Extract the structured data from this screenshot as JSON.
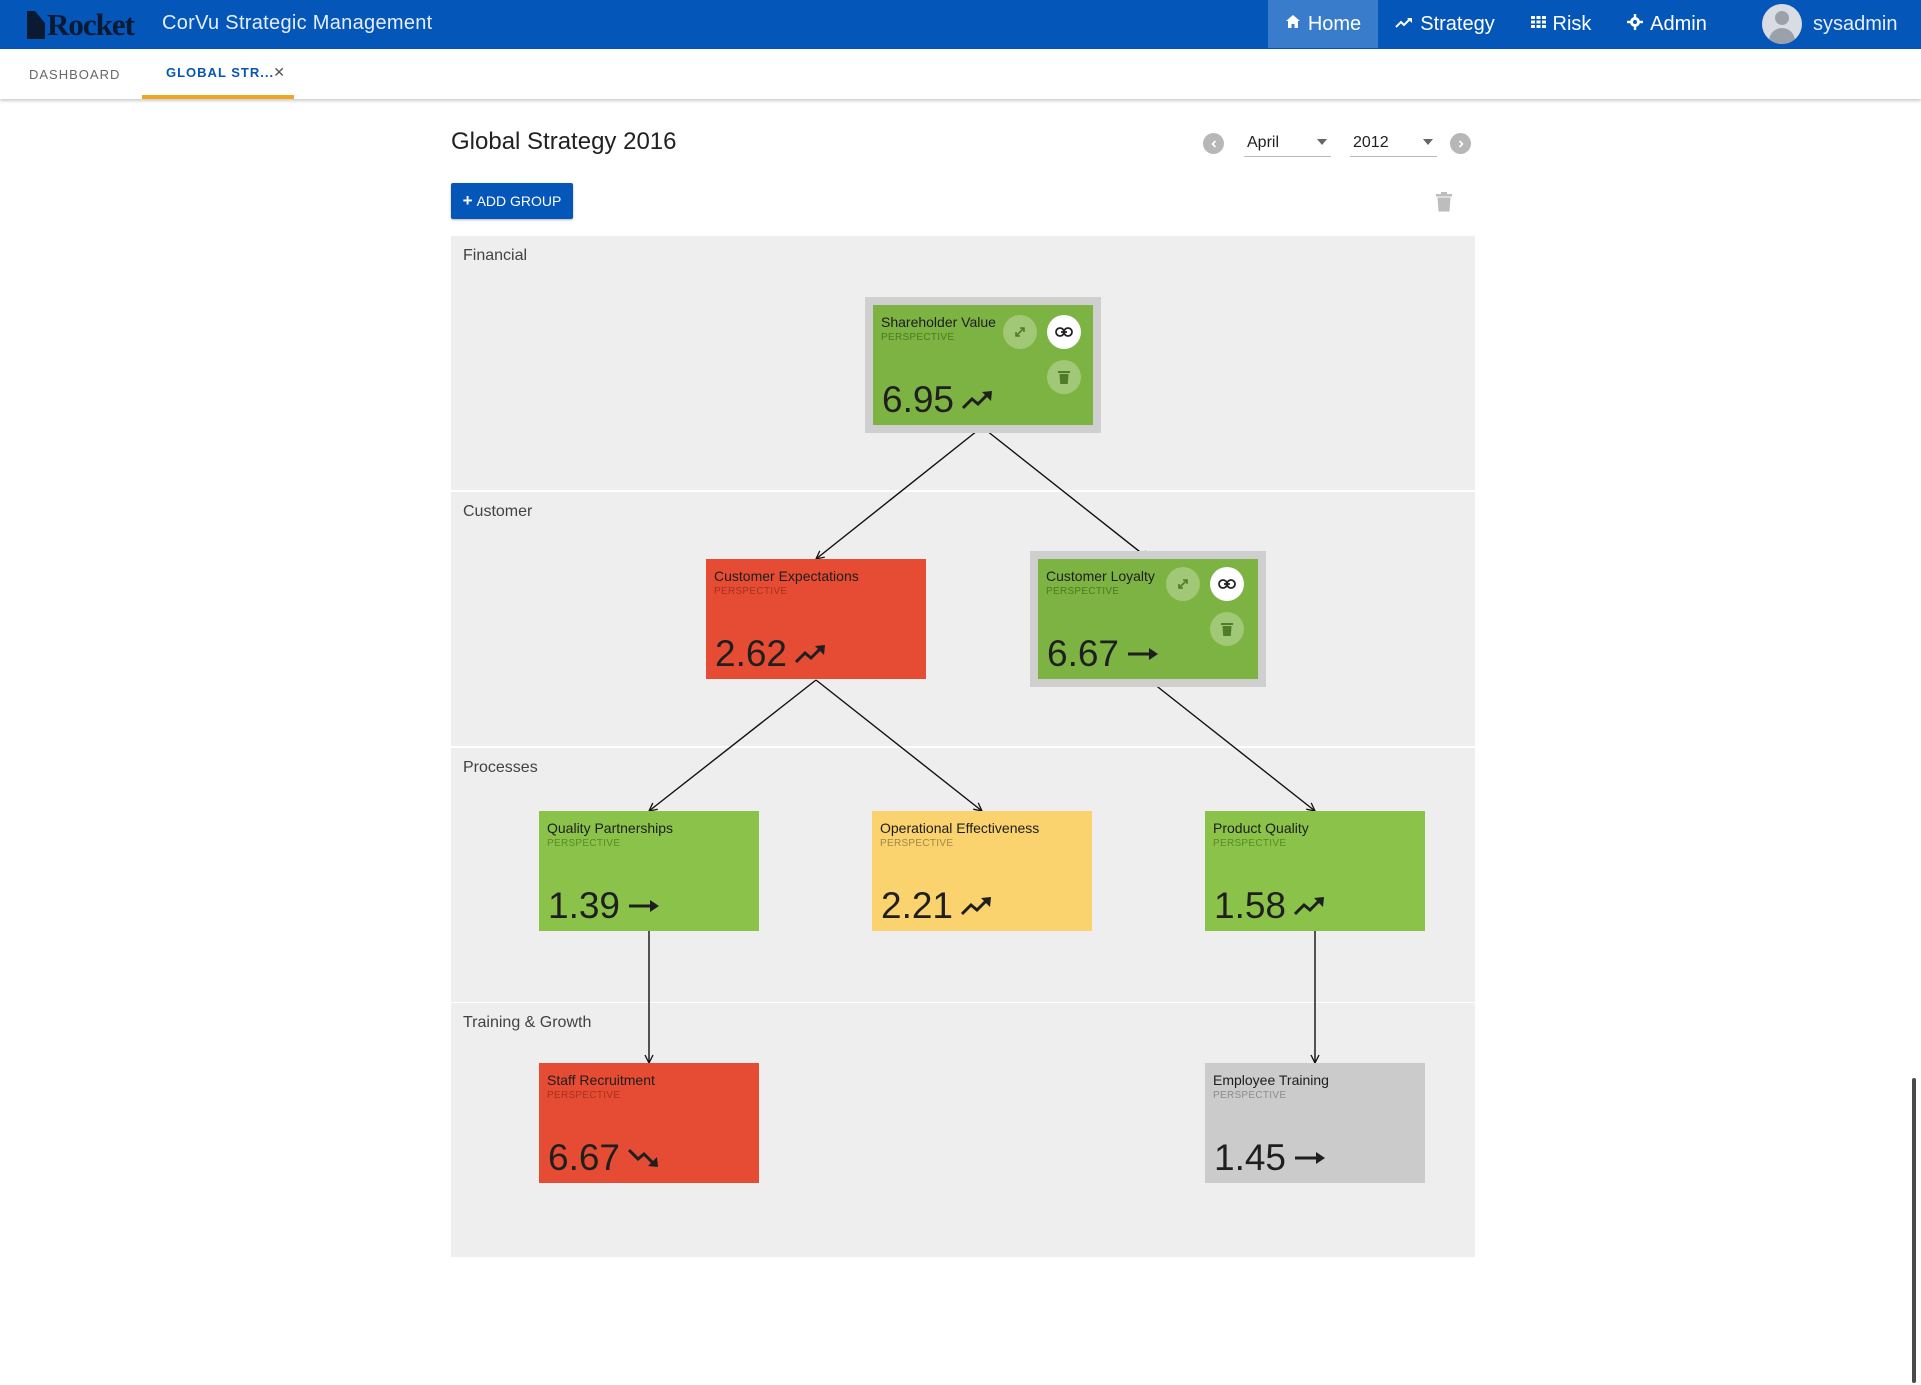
{
  "app": {
    "logo": "Rocket",
    "title": "CorVu Strategic Management",
    "nav": [
      {
        "label": "Home",
        "icon": "home-icon"
      },
      {
        "label": "Strategy",
        "icon": "trend-icon"
      },
      {
        "label": "Risk",
        "icon": "grid-icon"
      },
      {
        "label": "Admin",
        "icon": "gear-icon"
      }
    ],
    "user": "sysadmin"
  },
  "tabs": [
    {
      "label": "DASHBOARD"
    },
    {
      "label": "GLOBAL STR..."
    }
  ],
  "page": {
    "title": "Global Strategy 2016",
    "month": "April",
    "year": "2012",
    "add_group_label": "ADD GROUP"
  },
  "groups": [
    {
      "label": "Financial"
    },
    {
      "label": "Customer"
    },
    {
      "label": "Processes"
    },
    {
      "label": "Training & Growth"
    }
  ],
  "cards": [
    {
      "name": "Shareholder Value",
      "type": "PERSPECTIVE",
      "value": "6.95",
      "trend": "up",
      "status": "green"
    },
    {
      "name": "Customer Expectations",
      "type": "PERSPECTIVE",
      "value": "2.62",
      "trend": "up",
      "status": "red"
    },
    {
      "name": "Customer Loyalty",
      "type": "PERSPECTIVE",
      "value": "6.67",
      "trend": "flat",
      "status": "green"
    },
    {
      "name": "Quality Partnerships",
      "type": "PERSPECTIVE",
      "value": "1.39",
      "trend": "flat",
      "status": "lightgreen"
    },
    {
      "name": "Operational Effectiveness",
      "type": "PERSPECTIVE",
      "value": "2.21",
      "trend": "up",
      "status": "yellow"
    },
    {
      "name": "Product Quality",
      "type": "PERSPECTIVE",
      "value": "1.58",
      "trend": "up",
      "status": "lightgreen"
    },
    {
      "name": "Staff Recruitment",
      "type": "PERSPECTIVE",
      "value": "6.67",
      "trend": "down",
      "status": "red"
    },
    {
      "name": "Employee Training",
      "type": "PERSPECTIVE",
      "value": "1.45",
      "trend": "flat",
      "status": "grey"
    }
  ]
}
